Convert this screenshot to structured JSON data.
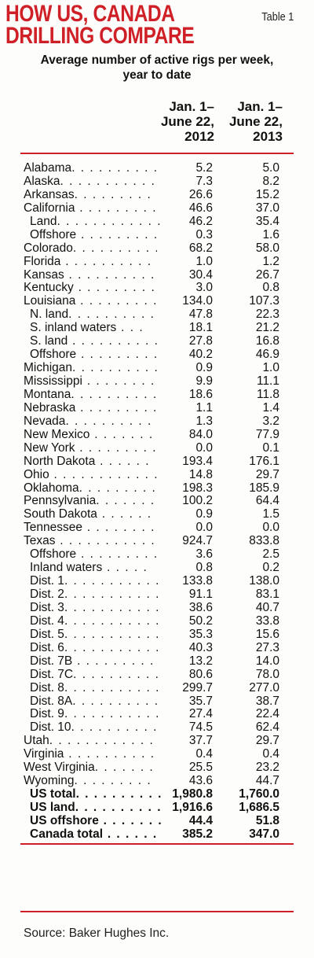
{
  "header": {
    "title_line1": "HOW US, CANADA",
    "title_line2": "DRILLING COMPARE",
    "table_tag": "Table 1",
    "subtitle_line1": "Average number of active rigs per week,",
    "subtitle_line2": "year to date"
  },
  "columns": [
    {
      "line1": "Jan. 1–",
      "line2": "June 22,",
      "line3": "2012"
    },
    {
      "line1": "Jan. 1–",
      "line2": "June 22,",
      "line3": "2013"
    }
  ],
  "rows": [
    {
      "label": "Alabama",
      "dots": ". . . . . . . . . .",
      "v2012": "5.2",
      "v2013": "5.0",
      "style": "state"
    },
    {
      "label": "Alaska",
      "dots": ". . . . . . . . . . .",
      "v2012": "7.3",
      "v2013": "8.2",
      "style": "state"
    },
    {
      "label": "Arkansas",
      "dots": ". . . . . . . . . .",
      "v2012": "26.6",
      "v2013": "15.2",
      "style": "state"
    },
    {
      "label": "California",
      "dots": " . . . . . . . . .",
      "v2012": "46.6",
      "v2013": "37.0",
      "style": "state"
    },
    {
      "label": "Land",
      "dots": ". . . . . . . . . . . .",
      "v2012": "46.2",
      "v2013": "35.4",
      "style": "indent"
    },
    {
      "label": "Offshore",
      "dots": " . . . . . . . . . .",
      "v2012": "0.3",
      "v2013": "1.6",
      "style": "indent"
    },
    {
      "label": "Colorado",
      "dots": ". . . . . . . . . .",
      "v2012": "68.2",
      "v2013": "58.0",
      "style": "state"
    },
    {
      "label": "Florida",
      "dots": " . . . . . . . . . . .",
      "v2012": "1.0",
      "v2013": "1.2",
      "style": "state"
    },
    {
      "label": "Kansas",
      "dots": " . . . . . . . . . . .",
      "v2012": "30.4",
      "v2013": "26.7",
      "style": "state"
    },
    {
      "label": "Kentucky",
      "dots": " . . . . . . . . .",
      "v2012": "3.0",
      "v2013": "0.8",
      "style": "state"
    },
    {
      "label": "Louisiana",
      "dots": " . . . . . . . . .",
      "v2012": "134.0",
      "v2013": "107.3",
      "style": "state"
    },
    {
      "label": "N. land",
      "dots": ". . . . . . . . . .",
      "v2012": "47.8",
      "v2013": "22.3",
      "style": "indent"
    },
    {
      "label": "S. inland waters",
      "dots": " . . .",
      "v2012": "18.1",
      "v2013": "21.2",
      "style": "indent"
    },
    {
      "label": "S. land",
      "dots": " . . . . . . . . . .",
      "v2012": "27.8",
      "v2013": "16.8",
      "style": "indent"
    },
    {
      "label": "Offshore",
      "dots": " . . . . . . . . .",
      "v2012": "40.2",
      "v2013": "46.9",
      "style": "indent"
    },
    {
      "label": "Michigan",
      "dots": ". . . . . . . . . .",
      "v2012": "0.9",
      "v2013": "1.0",
      "style": "state"
    },
    {
      "label": "Mississippi",
      "dots": " . . . . . . . .",
      "v2012": "9.9",
      "v2013": "11.1",
      "style": "state"
    },
    {
      "label": "Montana",
      "dots": ". . . . . . . . . .",
      "v2012": "18.6",
      "v2013": "11.8",
      "style": "state"
    },
    {
      "label": "Nebraska",
      "dots": " . . . . . . . . .",
      "v2012": "1.1",
      "v2013": "1.4",
      "style": "state"
    },
    {
      "label": "Nevada",
      "dots": ". . . . . . . . . . .",
      "v2012": "1.3",
      "v2013": "3.2",
      "style": "state"
    },
    {
      "label": "New Mexico",
      "dots": " . . . . . . .",
      "v2012": "84.0",
      "v2013": "77.9",
      "style": "state"
    },
    {
      "label": "New York",
      "dots": " . . . . . . . . .",
      "v2012": "0.0",
      "v2013": "0.1",
      "style": "state"
    },
    {
      "label": "North Dakota",
      "dots": " . . . . . .",
      "v2012": "193.4",
      "v2013": "176.1",
      "style": "state"
    },
    {
      "label": "Ohio",
      "dots": " . . . . . . . . . . . . .",
      "v2012": "14.8",
      "v2013": "29.7",
      "style": "state"
    },
    {
      "label": "Oklahoma",
      "dots": ". . . . . . . . .",
      "v2012": "198.3",
      "v2013": "185.9",
      "style": "state"
    },
    {
      "label": "Pennsylvania",
      "dots": ". . . . . . .",
      "v2012": "100.2",
      "v2013": "64.4",
      "style": "state"
    },
    {
      "label": "South Dakota",
      "dots": " . . . . . .",
      "v2012": "0.9",
      "v2013": "1.5",
      "style": "state"
    },
    {
      "label": "Tennessee",
      "dots": " . . . . . . . .",
      "v2012": "0.0",
      "v2013": "0.0",
      "style": "state"
    },
    {
      "label": "Texas",
      "dots": " . . . . . . . . . . . .",
      "v2012": "924.7",
      "v2013": "833.8",
      "style": "state"
    },
    {
      "label": "Offshore",
      "dots": " . . . . . . . . .",
      "v2012": "3.6",
      "v2013": "2.5",
      "style": "indent"
    },
    {
      "label": "Inland waters",
      "dots": " . . . . .",
      "v2012": "0.8",
      "v2013": "0.2",
      "style": "indent"
    },
    {
      "label": "Dist. 1",
      "dots": ". . . . . . . . . . .",
      "v2012": "133.8",
      "v2013": "138.0",
      "style": "indent"
    },
    {
      "label": "Dist. 2",
      "dots": ". . . . . . . . . . .",
      "v2012": "91.1",
      "v2013": "83.1",
      "style": "indent"
    },
    {
      "label": "Dist. 3",
      "dots": ". . . . . . . . . . .",
      "v2012": "38.6",
      "v2013": "40.7",
      "style": "indent"
    },
    {
      "label": "Dist. 4",
      "dots": ". . . . . . . . . . .",
      "v2012": "50.2",
      "v2013": "33.8",
      "style": "indent"
    },
    {
      "label": "Dist. 5",
      "dots": ". . . . . . . . . . .",
      "v2012": "35.3",
      "v2013": "15.6",
      "style": "indent"
    },
    {
      "label": "Dist. 6",
      "dots": ". . . . . . . . . . .",
      "v2012": "40.3",
      "v2013": "27.3",
      "style": "indent"
    },
    {
      "label": "Dist. 7B",
      "dots": " . . . . . . . . .",
      "v2012": "13.2",
      "v2013": "14.0",
      "style": "indent"
    },
    {
      "label": "Dist. 7C",
      "dots": ". . . . . . . . . .",
      "v2012": "80.6",
      "v2013": "78.0",
      "style": "indent"
    },
    {
      "label": "Dist. 8",
      "dots": ". . . . . . . . . . .",
      "v2012": "299.7",
      "v2013": "277.0",
      "style": "indent"
    },
    {
      "label": "Dist. 8A",
      "dots": ". . . . . . . . . .",
      "v2012": "35.7",
      "v2013": "38.7",
      "style": "indent"
    },
    {
      "label": "Dist. 9",
      "dots": ". . . . . . . . . . .",
      "v2012": "27.4",
      "v2013": "22.4",
      "style": "indent"
    },
    {
      "label": "Dist. 10",
      "dots": ". . . . . . . . . .",
      "v2012": "74.5",
      "v2013": "62.4",
      "style": "indent"
    },
    {
      "label": "Utah",
      "dots": ". . . . . . . . . . . . .",
      "v2012": "37.7",
      "v2013": "29.7",
      "style": "state"
    },
    {
      "label": "Virginia",
      "dots": " . . . . . . . . . .",
      "v2012": "0.4",
      "v2013": "0.4",
      "style": "state"
    },
    {
      "label": "West Virginia",
      "dots": ". . . . . . .",
      "v2012": "25.5",
      "v2013": "23.2",
      "style": "state"
    },
    {
      "label": "Wyoming",
      "dots": ". . . . . . . . . .",
      "v2012": "43.6",
      "v2013": "44.7",
      "style": "state"
    },
    {
      "label": "US total",
      "dots": ". . . . . . . . . .",
      "v2012": "1,980.8",
      "v2013": "1,760.0",
      "style": "total"
    },
    {
      "label": "US land",
      "dots": ". . . . . . . . . .",
      "v2012": "1,916.6",
      "v2013": "1,686.5",
      "style": "total"
    },
    {
      "label": "US offshore",
      "dots": " . . . . . . .",
      "v2012": "44.4",
      "v2013": "51.8",
      "style": "total"
    },
    {
      "label": "Canada total",
      "dots": " . . . . . .",
      "v2012": "385.2",
      "v2013": "347.0",
      "style": "total"
    }
  ],
  "source": "Source: Baker Hughes Inc.",
  "colors": {
    "title": "#cf2027",
    "rule": "#cf2027",
    "text": "#111111"
  }
}
